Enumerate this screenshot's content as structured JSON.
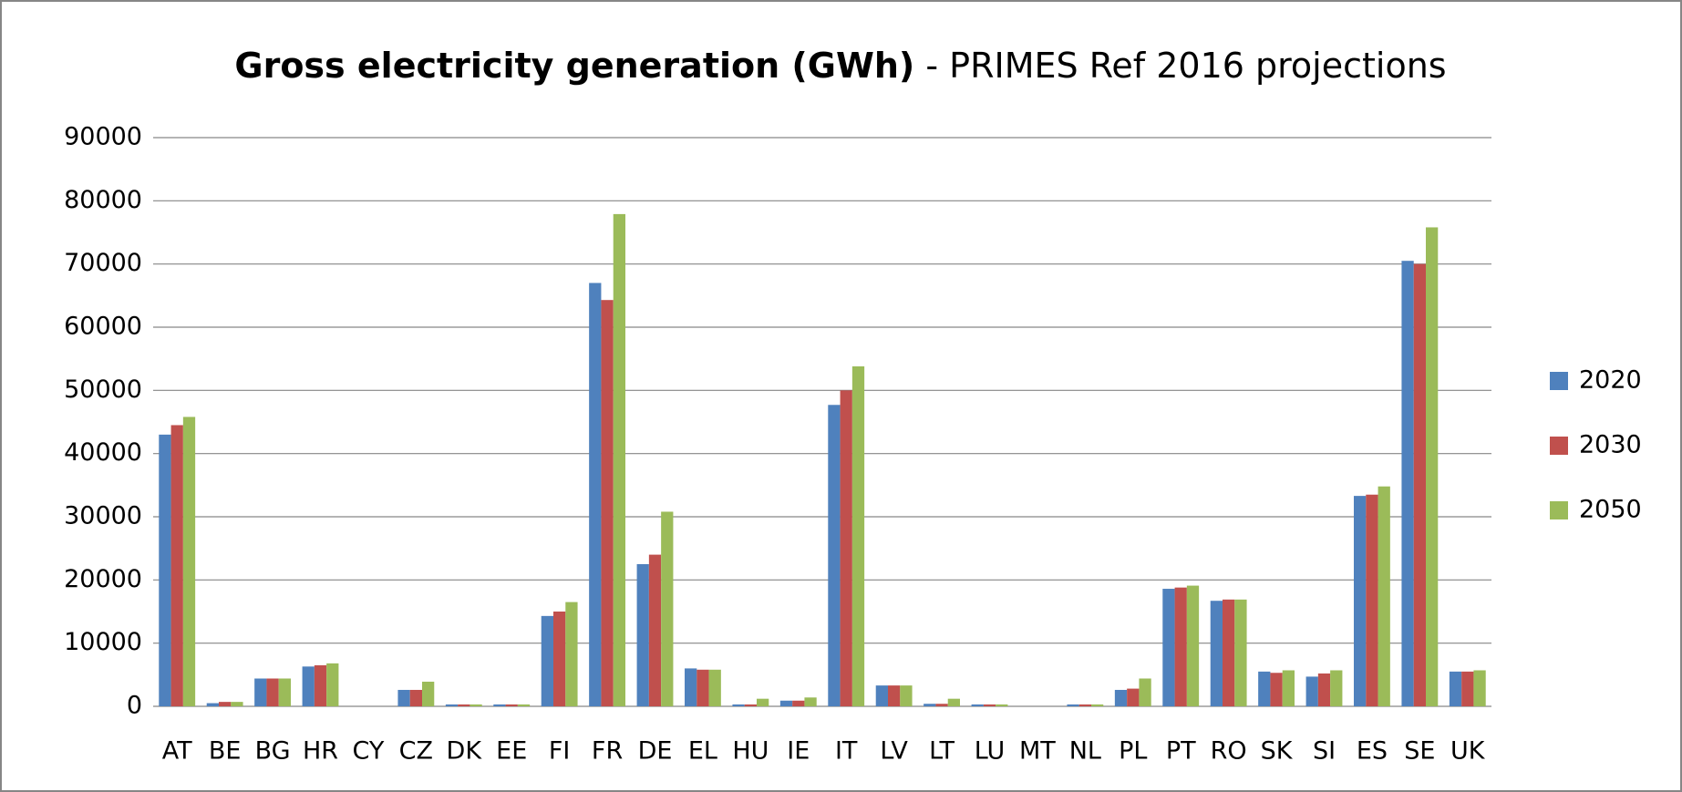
{
  "chart_data": {
    "type": "bar",
    "title": "Gross electricity generation (GWh)",
    "subtitle": "- PRIMES Ref 2016 projections",
    "categories": [
      "AT",
      "BE",
      "BG",
      "HR",
      "CY",
      "CZ",
      "DK",
      "EE",
      "FI",
      "FR",
      "DE",
      "EL",
      "HU",
      "IE",
      "IT",
      "LV",
      "LT",
      "LU",
      "MT",
      "NL",
      "PL",
      "PT",
      "RO",
      "SK",
      "SI",
      "ES",
      "SE",
      "UK"
    ],
    "series": [
      {
        "name": "2020",
        "color": "#4f81bd",
        "values": [
          43000,
          500,
          4400,
          6300,
          0,
          2600,
          300,
          300,
          14300,
          67000,
          22500,
          6000,
          300,
          900,
          47700,
          3300,
          400,
          300,
          0,
          300,
          2600,
          18600,
          16700,
          5500,
          4700,
          33300,
          70500,
          5500
        ]
      },
      {
        "name": "2030",
        "color": "#c0504d",
        "values": [
          44500,
          700,
          4400,
          6500,
          0,
          2600,
          300,
          300,
          15000,
          64300,
          24000,
          5800,
          300,
          900,
          50000,
          3300,
          400,
          300,
          0,
          300,
          2800,
          18800,
          16900,
          5300,
          5200,
          33500,
          70000,
          5500
        ]
      },
      {
        "name": "2050",
        "color": "#9bbb59",
        "values": [
          45800,
          700,
          4400,
          6800,
          0,
          3900,
          300,
          300,
          16500,
          77900,
          30800,
          5800,
          1200,
          1400,
          53800,
          3300,
          1200,
          300,
          0,
          300,
          4400,
          19100,
          16900,
          5700,
          5700,
          34800,
          75800,
          5700
        ]
      }
    ],
    "ylim": [
      0,
      90000
    ],
    "yticks": [
      0,
      10000,
      20000,
      30000,
      40000,
      50000,
      60000,
      70000,
      80000,
      90000
    ],
    "grid": true,
    "legend": "right"
  }
}
